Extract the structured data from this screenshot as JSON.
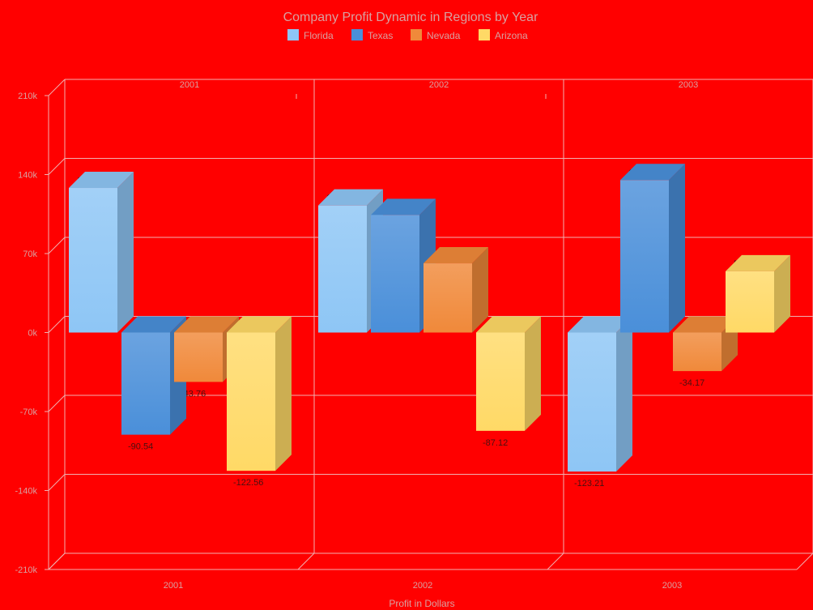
{
  "chart_data": {
    "type": "bar",
    "title": "Company Profit Dynamic in Regions by Year",
    "xlabel": "Profit in Dollars",
    "ylabel": "",
    "categories": [
      "2001",
      "2002",
      "2003"
    ],
    "series": [
      {
        "name": "Florida",
        "color": "#8ec6f5",
        "values": [
          128.14,
          112.61,
          -123.21
        ]
      },
      {
        "name": "Texas",
        "color": "#4a8fd9",
        "values": [
          -90.54,
          104.19,
          135.12
        ]
      },
      {
        "name": "Nevada",
        "color": "#f0893a",
        "values": [
          -43.76,
          61.34,
          -34.17
        ]
      },
      {
        "name": "Arizona",
        "color": "#ffd966",
        "values": [
          -122.56,
          -87.12,
          54.32
        ]
      }
    ],
    "value_labels": [
      [
        "128.14",
        "112.61",
        "-123.21"
      ],
      [
        "-90.54",
        "104.19",
        "135.12"
      ],
      [
        "-43.76",
        "61.34",
        "-34.17"
      ],
      [
        "-122.56",
        "-87.12",
        "54.32"
      ]
    ],
    "y_ticks": [
      {
        "value": 210,
        "label": "210k"
      },
      {
        "value": 140,
        "label": "140k"
      },
      {
        "value": 70,
        "label": "70k"
      },
      {
        "value": 0,
        "label": "0k"
      },
      {
        "value": -70,
        "label": "-70k"
      },
      {
        "value": -140,
        "label": "-140k"
      },
      {
        "value": -210,
        "label": "-210k"
      }
    ],
    "ylim": [
      -210,
      210
    ],
    "grid": true,
    "legend_position": "top-center",
    "style": "3d-columns"
  }
}
